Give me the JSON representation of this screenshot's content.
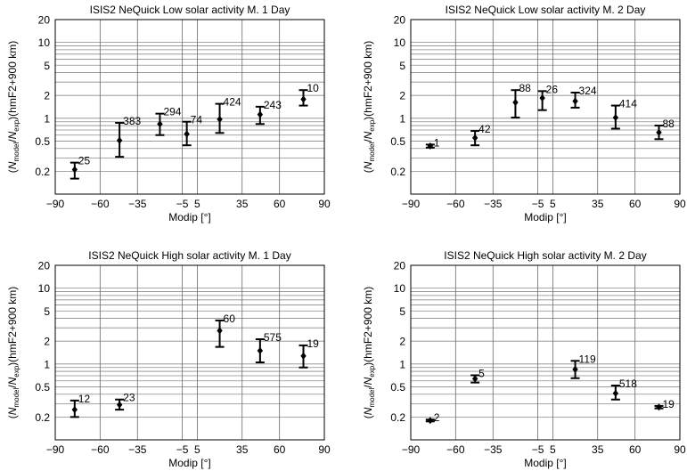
{
  "figure": {
    "xlabel": "Modip [°]",
    "x_ticks": [
      -90,
      -60,
      -35,
      -5,
      5,
      35,
      60,
      90
    ],
    "y_ticks": [
      0.2,
      0.5,
      1,
      2,
      5,
      10,
      20
    ],
    "y_gridlines": [
      0.2,
      0.3,
      0.4,
      0.5,
      0.6,
      0.7,
      0.8,
      0.9,
      1,
      2,
      3,
      4,
      5,
      6,
      7,
      8,
      9,
      10,
      20
    ],
    "x_gridlines": [
      -60,
      -35,
      -5,
      5,
      35,
      60
    ],
    "ylabel_parts": {
      "open": "(",
      "n1": "N",
      "sub1": "model",
      "slash": "/",
      "n2": "N",
      "sub2": "exp",
      "close": ")",
      "hmf2": "(hmF2+900 km)"
    }
  },
  "chart_data": [
    {
      "type": "scatter",
      "title": "ISIS2 NeQuick Low solar activity M. 1 Day",
      "xlabel": "Modip [°]",
      "ylabel": "(Nmodel/Nexp)(hmF2+900 km)",
      "xlim": [
        -90,
        90
      ],
      "ylim": [
        0.1,
        20
      ],
      "y_scale": "log",
      "grid": true,
      "points": [
        {
          "x": -77,
          "y": 0.21,
          "low": 0.16,
          "high": 0.26,
          "n": "25"
        },
        {
          "x": -47,
          "y": 0.51,
          "low": 0.31,
          "high": 0.87,
          "n": "383"
        },
        {
          "x": -20,
          "y": 0.84,
          "low": 0.6,
          "high": 1.15,
          "n": "294"
        },
        {
          "x": -2,
          "y": 0.62,
          "low": 0.44,
          "high": 0.9,
          "n": "74"
        },
        {
          "x": 20,
          "y": 0.97,
          "low": 0.64,
          "high": 1.55,
          "n": "424"
        },
        {
          "x": 47,
          "y": 1.12,
          "low": 0.84,
          "high": 1.42,
          "n": "243"
        },
        {
          "x": 76,
          "y": 1.78,
          "low": 1.47,
          "high": 2.35,
          "n": "10"
        }
      ]
    },
    {
      "type": "scatter",
      "title": "ISIS2 NeQuick Low solar activity M. 2 Day",
      "xlabel": "Modip [°]",
      "ylabel": "(Nmodel/Nexp)(hmF2+900 km)",
      "xlim": [
        -90,
        90
      ],
      "ylim": [
        0.1,
        20
      ],
      "y_scale": "log",
      "grid": true,
      "points": [
        {
          "x": -77,
          "y": 0.43,
          "low": 0.41,
          "high": 0.45,
          "n": "1"
        },
        {
          "x": -47,
          "y": 0.55,
          "low": 0.44,
          "high": 0.68,
          "n": "42"
        },
        {
          "x": -20,
          "y": 1.62,
          "low": 1.02,
          "high": 2.35,
          "n": "88"
        },
        {
          "x": -2,
          "y": 1.85,
          "low": 1.28,
          "high": 2.28,
          "n": "26"
        },
        {
          "x": 20,
          "y": 1.68,
          "low": 1.38,
          "high": 2.18,
          "n": "324"
        },
        {
          "x": 47,
          "y": 1.02,
          "low": 0.73,
          "high": 1.47,
          "n": "414"
        },
        {
          "x": 76,
          "y": 0.65,
          "low": 0.53,
          "high": 0.8,
          "n": "88"
        }
      ]
    },
    {
      "type": "scatter",
      "title": "ISIS2 NeQuick High solar activity M. 1 Day",
      "xlabel": "Modip [°]",
      "ylabel": "(Nmodel/Nexp)(hmF2+900 km)",
      "xlim": [
        -90,
        90
      ],
      "ylim": [
        0.1,
        20
      ],
      "y_scale": "log",
      "grid": true,
      "points": [
        {
          "x": -77,
          "y": 0.25,
          "low": 0.2,
          "high": 0.33,
          "n": "12"
        },
        {
          "x": -47,
          "y": 0.29,
          "low": 0.25,
          "high": 0.34,
          "n": "23"
        },
        {
          "x": 20,
          "y": 2.75,
          "low": 1.68,
          "high": 3.75,
          "n": "60"
        },
        {
          "x": 47,
          "y": 1.5,
          "low": 1.05,
          "high": 2.12,
          "n": "575"
        },
        {
          "x": 76,
          "y": 1.28,
          "low": 0.9,
          "high": 1.76,
          "n": "19"
        }
      ]
    },
    {
      "type": "scatter",
      "title": "ISIS2 NeQuick High solar activity M. 2 Day",
      "xlabel": "Modip [°]",
      "ylabel": "(Nmodel/Nexp)(hmF2+900 km)",
      "xlim": [
        -90,
        90
      ],
      "ylim": [
        0.1,
        20
      ],
      "y_scale": "log",
      "grid": true,
      "points": [
        {
          "x": -77,
          "y": 0.18,
          "low": 0.175,
          "high": 0.185,
          "n": "2"
        },
        {
          "x": -47,
          "y": 0.64,
          "low": 0.57,
          "high": 0.71,
          "n": "5"
        },
        {
          "x": 20,
          "y": 0.85,
          "low": 0.65,
          "high": 1.1,
          "n": "119"
        },
        {
          "x": 47,
          "y": 0.41,
          "low": 0.34,
          "high": 0.52,
          "n": "518"
        },
        {
          "x": 76,
          "y": 0.27,
          "low": 0.26,
          "high": 0.28,
          "n": "19"
        }
      ]
    }
  ]
}
